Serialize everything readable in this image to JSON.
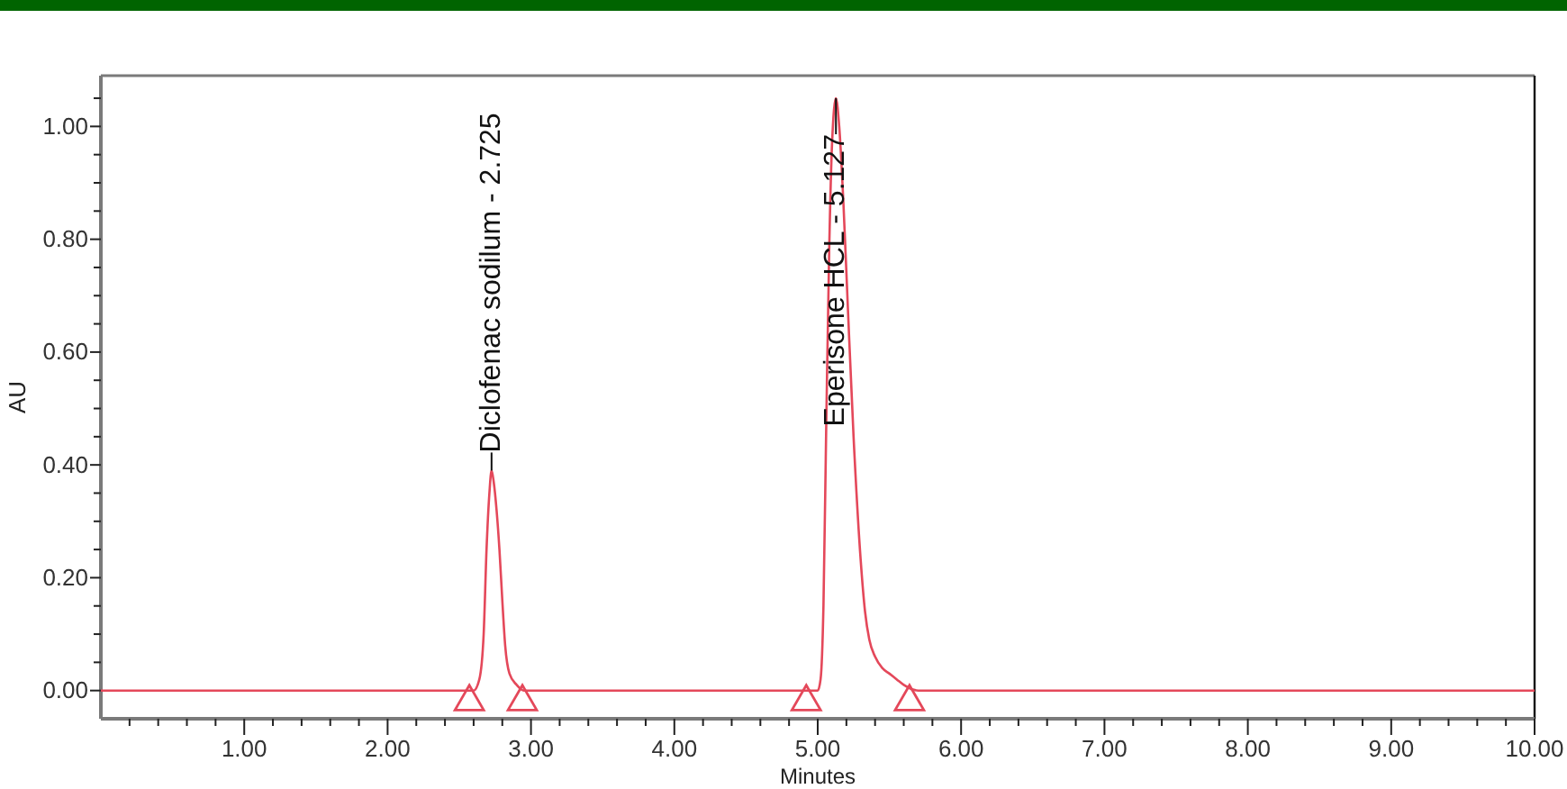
{
  "chart_data": {
    "type": "line",
    "xlabel": "Minutes",
    "ylabel": "AU",
    "x": [
      0,
      1,
      2,
      2.5,
      2.6,
      2.64,
      2.67,
      2.69,
      2.71,
      2.725,
      2.74,
      2.76,
      2.78,
      2.8,
      2.82,
      2.85,
      2.9,
      2.95,
      3.5,
      4.5,
      4.9,
      5,
      5.02,
      5.04,
      5.06,
      5.08,
      5.1,
      5.127,
      5.15,
      5.18,
      5.21,
      5.25,
      5.3,
      5.33,
      5.36,
      5.4,
      5.45,
      5.5,
      5.55,
      5.6,
      5.7,
      6,
      7,
      8,
      9,
      10
    ],
    "series": [
      {
        "color": "#e4485a",
        "values": [
          0,
          0,
          0,
          0,
          0,
          0.02,
          0.1,
          0.25,
          0.35,
          0.39,
          0.37,
          0.32,
          0.25,
          0.16,
          0.08,
          0.03,
          0.01,
          0,
          0,
          0,
          0,
          0,
          0.02,
          0.15,
          0.48,
          0.78,
          0.97,
          1.05,
          1.0,
          0.86,
          0.68,
          0.45,
          0.23,
          0.14,
          0.09,
          0.06,
          0.04,
          0.03,
          0.02,
          0.01,
          0,
          0,
          0,
          0,
          0,
          0
        ]
      },
      {
        "type": "scatter",
        "color": "#e4485a",
        "marker": "triangle",
        "x": [
          2.57,
          2.94,
          4.92,
          5.64
        ],
        "values": [
          -0.02,
          -0.02,
          -0.02,
          -0.02
        ]
      }
    ],
    "xlim": [
      0,
      10
    ],
    "xticks": [
      {
        "value": 0.2,
        "label": null
      },
      {
        "value": 0.4,
        "label": null
      },
      {
        "value": 0.6,
        "label": null
      },
      {
        "value": 0.8,
        "label": null
      },
      {
        "value": 1,
        "label": "1.00"
      },
      {
        "value": 1.2,
        "label": null
      },
      {
        "value": 1.4,
        "label": null
      },
      {
        "value": 1.6,
        "label": null
      },
      {
        "value": 1.8,
        "label": null
      },
      {
        "value": 2,
        "label": "2.00"
      },
      {
        "value": 2.2,
        "label": null
      },
      {
        "value": 2.4,
        "label": null
      },
      {
        "value": 2.6,
        "label": null
      },
      {
        "value": 2.8,
        "label": null
      },
      {
        "value": 3,
        "label": "3.00"
      },
      {
        "value": 3.2,
        "label": null
      },
      {
        "value": 3.4,
        "label": null
      },
      {
        "value": 3.6,
        "label": null
      },
      {
        "value": 3.8,
        "label": null
      },
      {
        "value": 4,
        "label": "4.00"
      },
      {
        "value": 4.2,
        "label": null
      },
      {
        "value": 4.4,
        "label": null
      },
      {
        "value": 4.6,
        "label": null
      },
      {
        "value": 4.8,
        "label": null
      },
      {
        "value": 5,
        "label": "5.00"
      },
      {
        "value": 5.2,
        "label": null
      },
      {
        "value": 5.4,
        "label": null
      },
      {
        "value": 5.6,
        "label": null
      },
      {
        "value": 5.8,
        "label": null
      },
      {
        "value": 6,
        "label": "6.00"
      },
      {
        "value": 6.2,
        "label": null
      },
      {
        "value": 6.4,
        "label": null
      },
      {
        "value": 6.6,
        "label": null
      },
      {
        "value": 6.8,
        "label": null
      },
      {
        "value": 7,
        "label": "7.00"
      },
      {
        "value": 7.2,
        "label": null
      },
      {
        "value": 7.4,
        "label": null
      },
      {
        "value": 7.6,
        "label": null
      },
      {
        "value": 7.8,
        "label": null
      },
      {
        "value": 8,
        "label": "8.00"
      },
      {
        "value": 8.2,
        "label": null
      },
      {
        "value": 8.4,
        "label": null
      },
      {
        "value": 8.6,
        "label": null
      },
      {
        "value": 8.8,
        "label": null
      },
      {
        "value": 9,
        "label": "9.00"
      },
      {
        "value": 9.2,
        "label": null
      },
      {
        "value": 9.4,
        "label": null
      },
      {
        "value": 9.6,
        "label": null
      },
      {
        "value": 9.8,
        "label": null
      },
      {
        "value": 10,
        "label": "10.00"
      }
    ],
    "ylim": [
      -0.05,
      1.09
    ],
    "yticks": [
      {
        "value": 0,
        "label": "0.00"
      },
      {
        "value": 0.05,
        "label": null
      },
      {
        "value": 0.1,
        "label": null
      },
      {
        "value": 0.15,
        "label": null
      },
      {
        "value": 0.2,
        "label": "0.20"
      },
      {
        "value": 0.25,
        "label": null
      },
      {
        "value": 0.3,
        "label": null
      },
      {
        "value": 0.35,
        "label": null
      },
      {
        "value": 0.4,
        "label": "0.40"
      },
      {
        "value": 0.45,
        "label": null
      },
      {
        "value": 0.5,
        "label": null
      },
      {
        "value": 0.55,
        "label": null
      },
      {
        "value": 0.6,
        "label": "0.60"
      },
      {
        "value": 0.65,
        "label": null
      },
      {
        "value": 0.7,
        "label": null
      },
      {
        "value": 0.75,
        "label": null
      },
      {
        "value": 0.8,
        "label": "0.80"
      },
      {
        "value": 0.85,
        "label": null
      },
      {
        "value": 0.9,
        "label": null
      },
      {
        "value": 0.95,
        "label": null
      },
      {
        "value": 1,
        "label": "1.00"
      },
      {
        "value": 1.05,
        "label": null
      }
    ],
    "annotations": [
      {
        "text": "Diclofenac sodilum - 2.725",
        "x": 2.725,
        "y": 0.39
      },
      {
        "text": "Eperisone HCL - 5.127",
        "x": 5.127,
        "y": 1.05
      }
    ]
  }
}
